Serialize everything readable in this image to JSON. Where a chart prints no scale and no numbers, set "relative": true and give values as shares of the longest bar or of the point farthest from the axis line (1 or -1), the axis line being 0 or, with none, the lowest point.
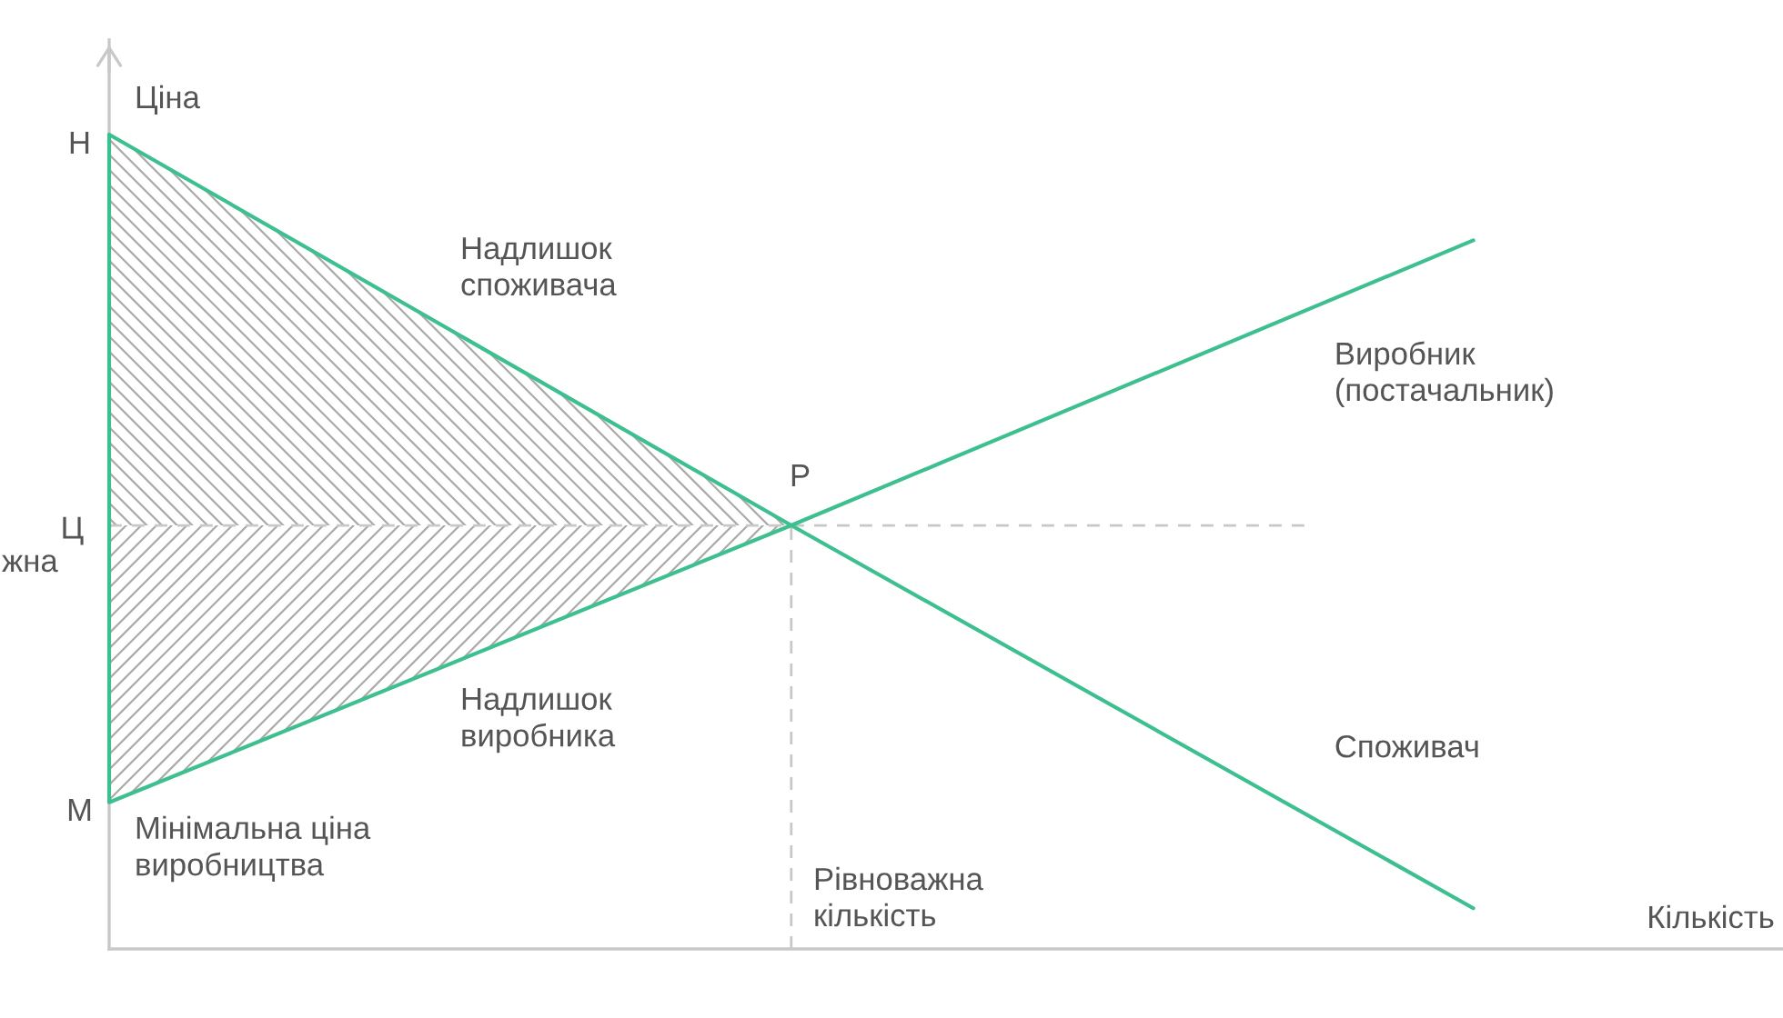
{
  "chart_data": {
    "type": "line",
    "relative": true,
    "xlabel": "Кількість",
    "ylabel": "Ціна",
    "categories": [
      null,
      null,
      null
    ],
    "series": [
      {
        "name": "Виробник\n(постачальник)",
        "color": "#3dbf8f",
        "values": [
          0.18,
          0.52,
          0.87
        ],
        "lower": [
          0.18,
          0.52,
          null
        ],
        "upper": [
          0.52,
          0.52,
          null
        ]
      },
      {
        "name": "Споживач",
        "color": "#3dbf8f",
        "values": [
          1,
          0.52,
          0.05
        ],
        "lower": [
          0.52,
          0.52,
          null
        ],
        "upper": [
          1,
          0.52,
          null
        ]
      }
    ],
    "ref_lines": [
      {
        "axis": "y",
        "value": 0.52,
        "label": "Ц",
        "color": "#c8c8c8",
        "line_style": "dashed"
      }
    ],
    "annotations": [
      "Н",
      "М",
      "Мінімальна ціна\nвиробництва",
      "Надлишок\nспоживача",
      "Надлишок\nвиробника",
      "Р",
      "жна",
      "Рівноважна\nкількість"
    ]
  }
}
